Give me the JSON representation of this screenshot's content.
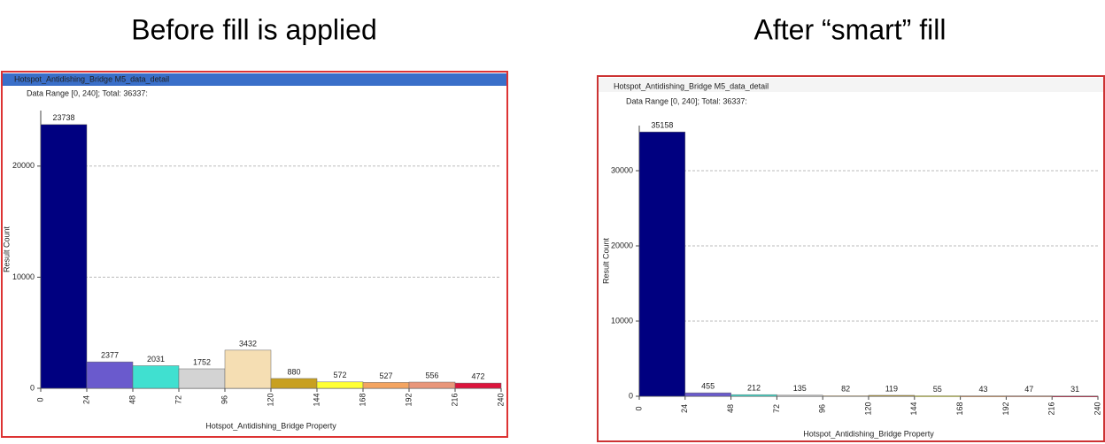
{
  "chart_data": [
    {
      "type": "histogram",
      "heading": "Before fill is applied",
      "title": "Hotspot_Antidishing_Bridge M5_data_detail",
      "subtitle": "Data Range [0, 240]; Total: 36337:",
      "ylabel": "Result Count",
      "xlabel": "Hotspot_Antidishing_Bridge Property",
      "bins": [
        0,
        24,
        48,
        72,
        96,
        120,
        144,
        168,
        192,
        216,
        240
      ],
      "values": [
        23738,
        2377,
        2031,
        1752,
        3432,
        880,
        572,
        527,
        556,
        472
      ],
      "colors": [
        "#000080",
        "#6a5acd",
        "#40e0d0",
        "#d3d3d3",
        "#f5deb3",
        "#c8a020",
        "#ffff33",
        "#f4a460",
        "#e9967a",
        "#dc143c"
      ],
      "xlim": [
        0,
        240
      ],
      "xticks": [
        0,
        24,
        48,
        72,
        96,
        120,
        144,
        168,
        192,
        216,
        240
      ],
      "ylim": [
        0,
        25000
      ],
      "yticks": [
        0,
        10000,
        20000
      ],
      "grid": true
    },
    {
      "type": "histogram",
      "heading": "After “smart” fill",
      "title": "Hotspot_Antidishing_Bridge M5_data_detail",
      "subtitle": "Data Range [0, 240]; Total: 36337:",
      "ylabel": "Result Count",
      "xlabel": "Hotspot_Antidishing_Bridge Property",
      "bins": [
        0,
        24,
        48,
        72,
        96,
        120,
        144,
        168,
        192,
        216,
        240
      ],
      "values": [
        35158,
        455,
        212,
        135,
        82,
        119,
        55,
        43,
        47,
        31
      ],
      "colors": [
        "#000080",
        "#6a5acd",
        "#40e0d0",
        "#d3d3d3",
        "#f5deb3",
        "#c8a020",
        "#ffff33",
        "#f4a460",
        "#e9967a",
        "#dc143c"
      ],
      "xlim": [
        0,
        240
      ],
      "xticks": [
        0,
        24,
        48,
        72,
        96,
        120,
        144,
        168,
        192,
        216,
        240
      ],
      "ylim": [
        0,
        36000
      ],
      "yticks": [
        0,
        10000,
        20000,
        30000
      ],
      "grid": true
    }
  ]
}
